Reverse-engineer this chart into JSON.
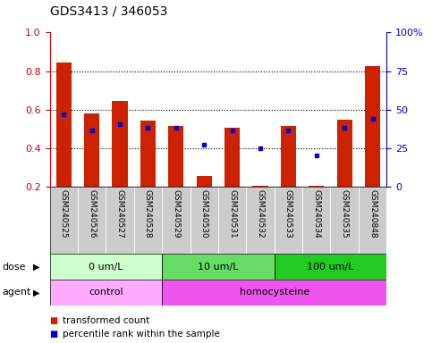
{
  "title": "GDS3413 / 346053",
  "samples": [
    "GSM240525",
    "GSM240526",
    "GSM240527",
    "GSM240528",
    "GSM240529",
    "GSM240530",
    "GSM240531",
    "GSM240532",
    "GSM240533",
    "GSM240534",
    "GSM240535",
    "GSM240848"
  ],
  "red_values": [
    0.845,
    0.58,
    0.645,
    0.545,
    0.515,
    0.255,
    0.505,
    0.205,
    0.515,
    0.205,
    0.55,
    0.825
  ],
  "blue_values": [
    0.575,
    0.495,
    0.525,
    0.505,
    0.505,
    0.42,
    0.495,
    0.4,
    0.495,
    0.365,
    0.505,
    0.555
  ],
  "ylim_left": [
    0.2,
    1.0
  ],
  "ylim_right": [
    0,
    100
  ],
  "yticks_left": [
    0.2,
    0.4,
    0.6,
    0.8,
    1.0
  ],
  "yticks_right": [
    0,
    25,
    50,
    75,
    100
  ],
  "ytick_labels_right": [
    "0",
    "25",
    "50",
    "75",
    "100%"
  ],
  "dose_groups": [
    {
      "label": "0 um/L",
      "start": 0,
      "end": 4,
      "color": "#ccffcc"
    },
    {
      "label": "10 um/L",
      "start": 4,
      "end": 8,
      "color": "#66dd66"
    },
    {
      "label": "100 um/L",
      "start": 8,
      "end": 12,
      "color": "#22cc22"
    }
  ],
  "agent_groups": [
    {
      "label": "control",
      "start": 0,
      "end": 4,
      "color": "#ffaaff"
    },
    {
      "label": "homocysteine",
      "start": 4,
      "end": 12,
      "color": "#dd55dd"
    }
  ],
  "bar_color": "#cc2200",
  "dot_color": "#0000cc",
  "tick_bg": "#cccccc",
  "legend_red": "transformed count",
  "legend_blue": "percentile rank within the sample",
  "left_axis_color": "#cc0000",
  "right_axis_color": "#0000cc",
  "bar_width": 0.55
}
